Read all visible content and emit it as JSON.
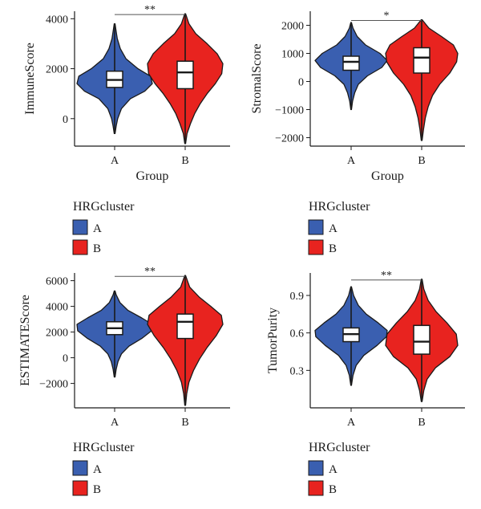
{
  "colors": {
    "A": "#3a5fb0",
    "B": "#e8231f",
    "outline": "#1a1a1a",
    "box": "#ffffff"
  },
  "chart_data": [
    {
      "type": "violin",
      "categories": [
        "A",
        "B"
      ],
      "xlabel": "Group",
      "ylabel": "ImmuneScore",
      "ylim": [
        -1100,
        4300
      ],
      "yticks": [
        0,
        2000,
        4000
      ],
      "ytick_labels": [
        "0",
        "2000",
        "4000"
      ],
      "significance": "**",
      "legend": {
        "title": "HRGcluster",
        "entries": [
          "A",
          "B"
        ]
      },
      "series": [
        {
          "name": "A",
          "q1": 1250,
          "median": 1550,
          "q3": 1900,
          "min": -600,
          "max": 3800,
          "density": [
            [
              -600,
              0.01
            ],
            [
              -300,
              0.04
            ],
            [
              0,
              0.08
            ],
            [
              400,
              0.18
            ],
            [
              800,
              0.42
            ],
            [
              1100,
              0.8
            ],
            [
              1400,
              1.0
            ],
            [
              1700,
              0.95
            ],
            [
              2000,
              0.62
            ],
            [
              2400,
              0.3
            ],
            [
              2800,
              0.15
            ],
            [
              3200,
              0.07
            ],
            [
              3600,
              0.03
            ],
            [
              3800,
              0.01
            ]
          ]
        },
        {
          "name": "B",
          "q1": 1200,
          "median": 1850,
          "q3": 2300,
          "min": -1000,
          "max": 4200,
          "density": [
            [
              -1000,
              0.01
            ],
            [
              -600,
              0.05
            ],
            [
              -200,
              0.14
            ],
            [
              200,
              0.25
            ],
            [
              600,
              0.4
            ],
            [
              1000,
              0.58
            ],
            [
              1400,
              0.8
            ],
            [
              1800,
              0.97
            ],
            [
              2200,
              1.0
            ],
            [
              2600,
              0.85
            ],
            [
              3000,
              0.58
            ],
            [
              3400,
              0.28
            ],
            [
              3800,
              0.1
            ],
            [
              4200,
              0.01
            ]
          ]
        }
      ]
    },
    {
      "type": "violin",
      "categories": [
        "A",
        "B"
      ],
      "xlabel": "Group",
      "ylabel": "StromalScore",
      "ylim": [
        -2300,
        2500
      ],
      "yticks": [
        -2000,
        -1000,
        0,
        1000,
        2000
      ],
      "ytick_labels": [
        "−2000",
        "−1000",
        "0",
        "1000",
        "2000"
      ],
      "significance": "*",
      "legend": {
        "title": "HRGcluster",
        "entries": [
          "A",
          "B"
        ]
      },
      "series": [
        {
          "name": "A",
          "q1": 400,
          "median": 700,
          "q3": 900,
          "min": -1000,
          "max": 2100,
          "density": [
            [
              -1000,
              0.01
            ],
            [
              -700,
              0.04
            ],
            [
              -400,
              0.1
            ],
            [
              -100,
              0.2
            ],
            [
              200,
              0.45
            ],
            [
              500,
              0.85
            ],
            [
              750,
              1.0
            ],
            [
              1000,
              0.8
            ],
            [
              1300,
              0.4
            ],
            [
              1600,
              0.17
            ],
            [
              1900,
              0.05
            ],
            [
              2100,
              0.01
            ]
          ]
        },
        {
          "name": "B",
          "q1": 300,
          "median": 850,
          "q3": 1200,
          "min": -2100,
          "max": 2200,
          "density": [
            [
              -2100,
              0.01
            ],
            [
              -1700,
              0.05
            ],
            [
              -1300,
              0.1
            ],
            [
              -900,
              0.18
            ],
            [
              -500,
              0.3
            ],
            [
              -100,
              0.5
            ],
            [
              300,
              0.78
            ],
            [
              700,
              0.97
            ],
            [
              1000,
              1.0
            ],
            [
              1300,
              0.88
            ],
            [
              1600,
              0.55
            ],
            [
              1900,
              0.2
            ],
            [
              2200,
              0.01
            ]
          ]
        }
      ]
    },
    {
      "type": "violin",
      "categories": [
        "A",
        "B"
      ],
      "xlabel": "",
      "ylabel": "ESTIMATEScore",
      "ylim": [
        -3900,
        6600
      ],
      "yticks": [
        -2000,
        0,
        2000,
        4000,
        6000
      ],
      "ytick_labels": [
        "−2000",
        "0",
        "2000",
        "4000",
        "6000"
      ],
      "significance": "**",
      "legend": {
        "title": "HRGcluster",
        "entries": [
          "A",
          "B"
        ]
      },
      "series": [
        {
          "name": "A",
          "q1": 1800,
          "median": 2300,
          "q3": 2800,
          "min": -1500,
          "max": 5200,
          "density": [
            [
              -1500,
              0.01
            ],
            [
              -900,
              0.04
            ],
            [
              -300,
              0.09
            ],
            [
              300,
              0.18
            ],
            [
              900,
              0.38
            ],
            [
              1500,
              0.72
            ],
            [
              2100,
              0.98
            ],
            [
              2600,
              1.0
            ],
            [
              3100,
              0.72
            ],
            [
              3700,
              0.35
            ],
            [
              4300,
              0.14
            ],
            [
              4900,
              0.04
            ],
            [
              5200,
              0.01
            ]
          ]
        },
        {
          "name": "B",
          "q1": 1500,
          "median": 2800,
          "q3": 3400,
          "min": -3700,
          "max": 6400,
          "density": [
            [
              -3700,
              0.01
            ],
            [
              -2800,
              0.04
            ],
            [
              -1900,
              0.1
            ],
            [
              -1000,
              0.22
            ],
            [
              -100,
              0.38
            ],
            [
              800,
              0.58
            ],
            [
              1700,
              0.82
            ],
            [
              2600,
              1.0
            ],
            [
              3300,
              0.96
            ],
            [
              4000,
              0.68
            ],
            [
              4700,
              0.38
            ],
            [
              5500,
              0.12
            ],
            [
              6400,
              0.01
            ]
          ]
        }
      ]
    },
    {
      "type": "violin",
      "categories": [
        "A",
        "B"
      ],
      "xlabel": "",
      "ylabel": "TumorPurity",
      "ylim": [
        0.0,
        1.08
      ],
      "yticks": [
        0.3,
        0.6,
        0.9
      ],
      "ytick_labels": [
        "0.3",
        "0.6",
        "0.9"
      ],
      "significance": "**",
      "legend": {
        "title": "HRGcluster",
        "entries": [
          "A",
          "B"
        ]
      },
      "series": [
        {
          "name": "A",
          "q1": 0.53,
          "median": 0.59,
          "q3": 0.64,
          "min": 0.18,
          "max": 0.97,
          "density": [
            [
              0.18,
              0.01
            ],
            [
              0.26,
              0.05
            ],
            [
              0.34,
              0.14
            ],
            [
              0.42,
              0.35
            ],
            [
              0.5,
              0.72
            ],
            [
              0.57,
              0.98
            ],
            [
              0.62,
              1.0
            ],
            [
              0.68,
              0.75
            ],
            [
              0.75,
              0.42
            ],
            [
              0.82,
              0.2
            ],
            [
              0.9,
              0.07
            ],
            [
              0.97,
              0.01
            ]
          ]
        },
        {
          "name": "B",
          "q1": 0.43,
          "median": 0.53,
          "q3": 0.66,
          "min": 0.05,
          "max": 1.03,
          "density": [
            [
              0.05,
              0.01
            ],
            [
              0.14,
              0.06
            ],
            [
              0.23,
              0.15
            ],
            [
              0.32,
              0.38
            ],
            [
              0.41,
              0.78
            ],
            [
              0.5,
              1.0
            ],
            [
              0.59,
              0.96
            ],
            [
              0.68,
              0.7
            ],
            [
              0.77,
              0.4
            ],
            [
              0.86,
              0.18
            ],
            [
              0.95,
              0.06
            ],
            [
              1.03,
              0.01
            ]
          ]
        }
      ]
    }
  ]
}
